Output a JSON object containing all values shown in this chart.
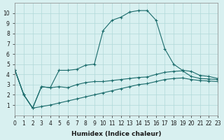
{
  "xlabel": "Humidex (Indice chaleur)",
  "ylabel": "",
  "bg_color": "#d8f0f0",
  "grid_color": "#b0d8d8",
  "line_color": "#1a6b6b",
  "xlim": [
    0,
    23
  ],
  "ylim": [
    0,
    11
  ],
  "xticks": [
    0,
    1,
    2,
    3,
    4,
    5,
    6,
    7,
    8,
    9,
    10,
    11,
    12,
    13,
    14,
    15,
    16,
    17,
    18,
    19,
    20,
    21,
    22,
    23
  ],
  "yticks": [
    1,
    2,
    3,
    4,
    5,
    6,
    7,
    8,
    9,
    10
  ],
  "line1_x": [
    0,
    1,
    2,
    3,
    4,
    5,
    6,
    7,
    8,
    9,
    10,
    11,
    12,
    13,
    14,
    15,
    16,
    17,
    18,
    19,
    20,
    21,
    22,
    23
  ],
  "line1_y": [
    4.4,
    2.0,
    0.7,
    2.8,
    2.7,
    4.4,
    4.4,
    4.5,
    4.9,
    5.0,
    8.3,
    9.3,
    9.6,
    10.1,
    10.25,
    10.25,
    9.3,
    6.5,
    5.0,
    4.4,
    4.3,
    3.9,
    3.8,
    3.6
  ],
  "line2_x": [
    0,
    1,
    2,
    3,
    4,
    5,
    6,
    7,
    8,
    9,
    10,
    11,
    12,
    13,
    14,
    15,
    16,
    17,
    18,
    19,
    20,
    21,
    22,
    23
  ],
  "line2_y": [
    4.4,
    2.0,
    0.7,
    2.8,
    2.7,
    2.8,
    2.7,
    3.0,
    3.2,
    3.3,
    3.3,
    3.4,
    3.5,
    3.6,
    3.7,
    3.75,
    4.0,
    4.2,
    4.3,
    4.35,
    3.8,
    3.6,
    3.55,
    3.5
  ],
  "line3_x": [
    0,
    1,
    2,
    3,
    4,
    5,
    6,
    7,
    8,
    9,
    10,
    11,
    12,
    13,
    14,
    15,
    16,
    17,
    18,
    19,
    20,
    21,
    22,
    23
  ],
  "line3_y": [
    4.4,
    2.0,
    0.7,
    0.85,
    1.0,
    1.2,
    1.4,
    1.6,
    1.8,
    2.0,
    2.2,
    2.4,
    2.6,
    2.8,
    3.0,
    3.1,
    3.3,
    3.5,
    3.6,
    3.65,
    3.5,
    3.4,
    3.35,
    3.3
  ]
}
